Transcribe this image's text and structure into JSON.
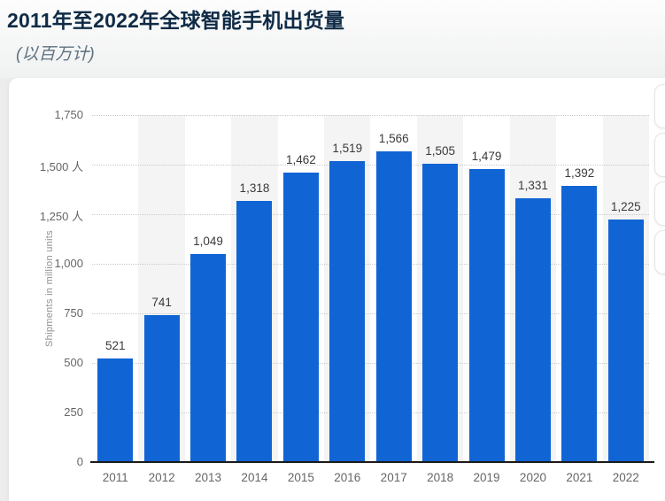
{
  "header": {
    "title": "2011年至2022年全球智能手机出货量",
    "subtitle": "(以百万计)"
  },
  "chart_data": {
    "type": "bar",
    "title": "2011年至2022年全球智能手机出货量",
    "subtitle": "(以百万计)",
    "categories": [
      "2011",
      "2012",
      "2013",
      "2014",
      "2015",
      "2016",
      "2017",
      "2018",
      "2019",
      "2020",
      "2021",
      "2022"
    ],
    "values": [
      521,
      741,
      1049,
      1318,
      1462,
      1519,
      1566,
      1505,
      1479,
      1331,
      1392,
      1225
    ],
    "value_labels": [
      "521",
      "741",
      "1,049",
      "1,318",
      "1,462",
      "1,519",
      "1,566",
      "1,505",
      "1,479",
      "1,331",
      "1,392",
      "1,225"
    ],
    "xlabel": "",
    "ylabel": "Shipments in million units",
    "ylim": [
      0,
      1750
    ],
    "yticks": [
      0,
      250,
      500,
      750,
      1000,
      1250,
      1500,
      1750
    ],
    "ytick_labels": [
      "0",
      "250",
      "500",
      "750",
      "1,000",
      "1,250 人",
      "1,500 人",
      "1,750"
    ],
    "grid": "horizontal-dotted",
    "legend": "none",
    "bar_color": "#1164d4",
    "band_color": "#f4f4f4",
    "band_columns": "alternating-even-years"
  }
}
